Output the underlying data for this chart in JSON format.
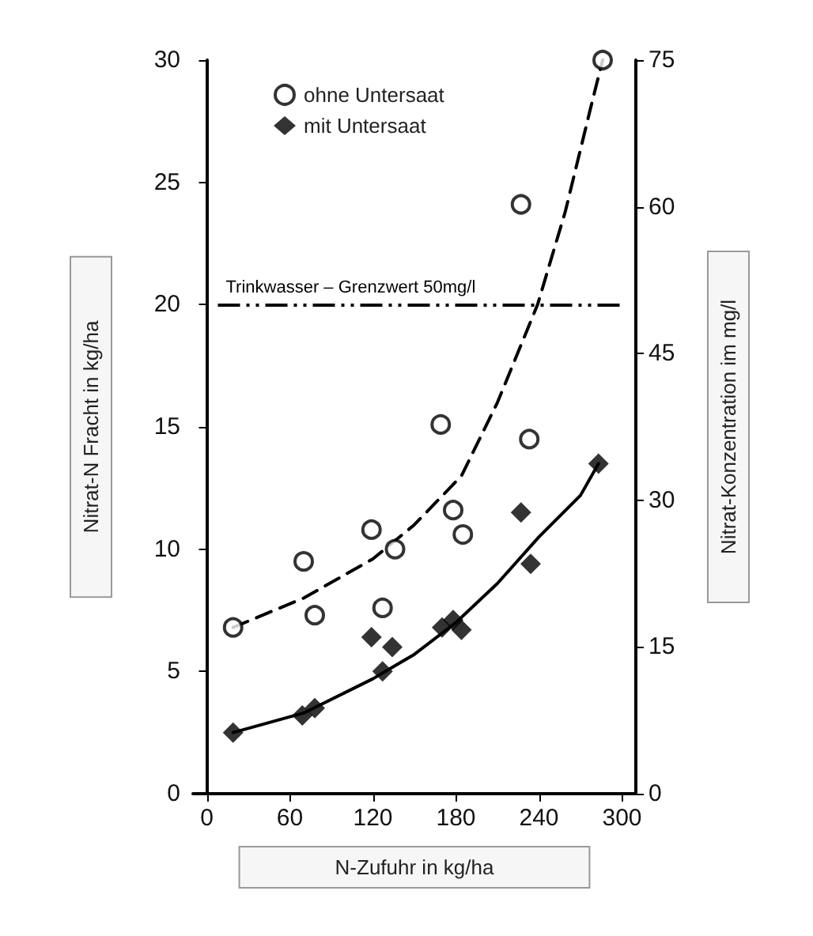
{
  "chart_data": {
    "type": "scatter",
    "xlabel": "N-Zufuhr in kg/ha",
    "ylabel": "Nitrat-N Fracht in kg/ha",
    "y2label": "Nitrat-Konzentration im mg/l",
    "xlim": [
      -10,
      310
    ],
    "xticks": [
      0,
      60,
      120,
      180,
      240,
      300
    ],
    "ylim": [
      0,
      30
    ],
    "yticks": [
      0,
      5,
      10,
      15,
      20,
      25,
      30
    ],
    "y2lim": [
      0,
      75
    ],
    "y2ticks": [
      0,
      15,
      30,
      45,
      60,
      75
    ],
    "legend": "top left",
    "grid": false,
    "series": [
      {
        "name": "ohne Untersaat",
        "type": "scatter",
        "marker": "circle",
        "color": "#000000",
        "x": [
          19,
          70,
          78,
          119,
          127,
          136,
          169,
          178,
          185,
          227,
          233,
          286
        ],
        "values": [
          6.8,
          9.5,
          7.3,
          10.8,
          7.6,
          10.0,
          15.1,
          11.6,
          10.6,
          24.1,
          14.5,
          30
        ]
      },
      {
        "name": "mit Untersaat",
        "type": "scatter",
        "marker": "diamond",
        "color": "#000000",
        "x": [
          19,
          69,
          78,
          119,
          127,
          134,
          170,
          178,
          184,
          227,
          234,
          283
        ],
        "values": [
          2.5,
          3.2,
          3.5,
          6.4,
          5.0,
          6.0,
          6.8,
          7.1,
          6.7,
          11.5,
          9.4,
          13.5
        ]
      },
      {
        "type": "line",
        "line_style": "dashed",
        "marker": "none",
        "color": "#000000",
        "x": [
          19,
          70,
          120,
          150,
          184,
          210,
          239,
          259,
          278,
          286
        ],
        "values": [
          6.8,
          8.0,
          9.6,
          11.0,
          13.0,
          16.0,
          20.0,
          23.8,
          28.2,
          30
        ]
      },
      {
        "type": "line",
        "line_style": "solid",
        "marker": "none",
        "color": "#000000",
        "x": [
          19,
          70,
          120,
          150,
          180,
          210,
          240,
          270,
          283
        ],
        "values": [
          2.5,
          3.3,
          4.7,
          5.7,
          7.0,
          8.6,
          10.5,
          12.2,
          13.5
        ]
      }
    ],
    "ref_lines": [
      {
        "axis": "y",
        "value": 20,
        "label": "Trinkwasser – Grenzwert 50mg/l",
        "color": "#000000"
      }
    ]
  }
}
